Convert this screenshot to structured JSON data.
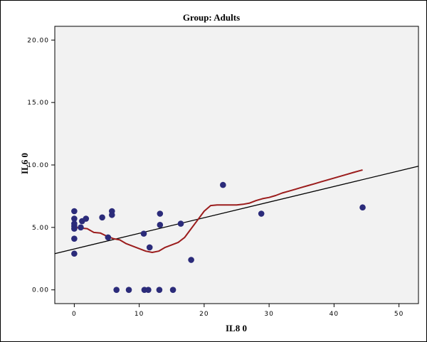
{
  "chart_data": {
    "type": "scatter",
    "title": "Group:  Adults",
    "xlabel": "IL8   0",
    "ylabel": "IL6   0",
    "xlim": [
      -3,
      53
    ],
    "ylim": [
      -1.1,
      21.1
    ],
    "x_ticks": [
      0,
      10,
      20,
      30,
      40,
      50
    ],
    "y_ticks": [
      0,
      5,
      10,
      15,
      20
    ],
    "x_tick_labels": [
      "0",
      "10",
      "20",
      "30",
      "40",
      "50"
    ],
    "y_tick_labels": [
      "0.00",
      "5.00",
      "10.00",
      "15.00",
      "20.00"
    ],
    "grid": false,
    "plot_background": "#f2f2f2",
    "point_color": "#2b2b7a",
    "fit_line_color": "#000000",
    "loess_color": "#9b1c1c",
    "points": [
      {
        "x": 0,
        "y": 6.3
      },
      {
        "x": 0,
        "y": 5.7
      },
      {
        "x": 0,
        "y": 5.3
      },
      {
        "x": 0,
        "y": 5.1
      },
      {
        "x": 0,
        "y": 4.9
      },
      {
        "x": 0,
        "y": 4.1
      },
      {
        "x": 0,
        "y": 2.9
      },
      {
        "x": 1.0,
        "y": 5.0
      },
      {
        "x": 1.2,
        "y": 5.5
      },
      {
        "x": 1.8,
        "y": 5.7
      },
      {
        "x": 4.3,
        "y": 5.8
      },
      {
        "x": 5.2,
        "y": 4.2
      },
      {
        "x": 5.8,
        "y": 6.3
      },
      {
        "x": 5.8,
        "y": 6.0
      },
      {
        "x": 6.5,
        "y": 0
      },
      {
        "x": 8.4,
        "y": 0
      },
      {
        "x": 10.7,
        "y": 4.5
      },
      {
        "x": 10.8,
        "y": 0
      },
      {
        "x": 11.4,
        "y": 0
      },
      {
        "x": 11.6,
        "y": 3.4
      },
      {
        "x": 13.1,
        "y": 0
      },
      {
        "x": 13.2,
        "y": 6.1
      },
      {
        "x": 13.2,
        "y": 5.2
      },
      {
        "x": 15.2,
        "y": 0
      },
      {
        "x": 16.4,
        "y": 5.3
      },
      {
        "x": 18.0,
        "y": 2.4
      },
      {
        "x": 22.9,
        "y": 8.4
      },
      {
        "x": 28.8,
        "y": 6.1
      },
      {
        "x": 44.4,
        "y": 6.6
      }
    ],
    "fit_line": {
      "x": [
        -3,
        53
      ],
      "y": [
        2.9,
        9.9
      ]
    },
    "loess": {
      "x": [
        0,
        1,
        2,
        3,
        4,
        5,
        6,
        7,
        8,
        9,
        10,
        11,
        12,
        13,
        14,
        15,
        16,
        17,
        18,
        19,
        20,
        21,
        22,
        23,
        24,
        25,
        26,
        27,
        28,
        29,
        30,
        31,
        32,
        33,
        34,
        35,
        36,
        37,
        38,
        39,
        40,
        41,
        42,
        43,
        44.4
      ],
      "y": [
        5.0,
        4.95,
        4.9,
        4.6,
        4.55,
        4.3,
        4.1,
        4.0,
        3.7,
        3.5,
        3.3,
        3.1,
        3.0,
        3.1,
        3.4,
        3.6,
        3.8,
        4.2,
        4.9,
        5.6,
        6.3,
        6.75,
        6.8,
        6.8,
        6.8,
        6.8,
        6.85,
        6.95,
        7.15,
        7.3,
        7.4,
        7.55,
        7.75,
        7.9,
        8.05,
        8.2,
        8.35,
        8.5,
        8.65,
        8.8,
        8.95,
        9.1,
        9.25,
        9.4,
        9.6
      ]
    }
  }
}
